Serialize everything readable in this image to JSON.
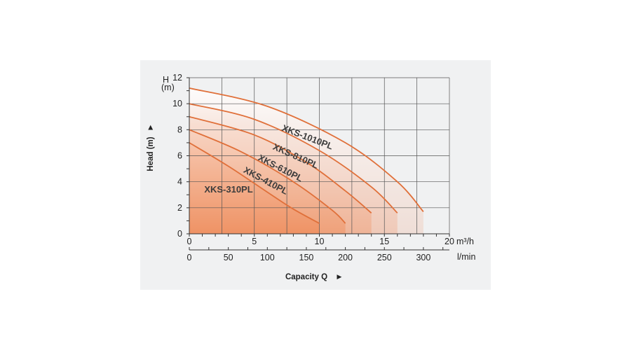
{
  "chart_data": {
    "type": "line",
    "title": "",
    "xlabel": "Capacity Q",
    "xlabel_arrow": "►",
    "ylabel": "Head (m)",
    "ylabel_arrow": "►",
    "y_axis_head_label": "H",
    "y_unit": "(m)",
    "x_unit_primary": "m³/h",
    "x_unit_secondary": "l/min",
    "xlim": [
      0,
      20
    ],
    "ylim": [
      0,
      12
    ],
    "x_ticks": [
      "0",
      "5",
      "10",
      "15",
      "20"
    ],
    "y_ticks": [
      "0",
      "2",
      "4",
      "6",
      "8",
      "10",
      "12"
    ],
    "x2_ticks": [
      "0",
      "50",
      "100",
      "150",
      "200",
      "250",
      "300"
    ],
    "x2_tick_values": [
      0,
      50,
      100,
      150,
      200,
      250,
      300
    ],
    "grid": true,
    "colors": {
      "curve": "#e0703a",
      "fill": "#f08d5c",
      "grid": "#555555",
      "panel": "#f0f1f2"
    },
    "series": [
      {
        "name": "XKS-310PL",
        "x": [
          0,
          3,
          6,
          8,
          10
        ],
        "y": [
          7,
          5.2,
          3.2,
          1.9,
          0.8
        ],
        "fill_opacity": 0.7
      },
      {
        "name": "XKS-410PL",
        "x": [
          0,
          4,
          8,
          11,
          12
        ],
        "y": [
          8,
          6.3,
          4,
          1.8,
          0.8
        ],
        "fill_opacity": 0.5
      },
      {
        "name": "XKS-610PL",
        "x": [
          0,
          5,
          9,
          12,
          14
        ],
        "y": [
          9,
          7.6,
          5.5,
          3.3,
          1.6
        ],
        "fill_opacity": 0.35
      },
      {
        "name": "XKS-810PL",
        "x": [
          0,
          5,
          10,
          14,
          16
        ],
        "y": [
          10,
          8.8,
          6.4,
          3.6,
          1.6
        ],
        "fill_opacity": 0.25
      },
      {
        "name": "XKS-1010PL",
        "x": [
          0,
          6,
          12,
          16,
          18
        ],
        "y": [
          11.2,
          9.8,
          7,
          4,
          1.7
        ],
        "fill_opacity": 0.18
      }
    ]
  }
}
